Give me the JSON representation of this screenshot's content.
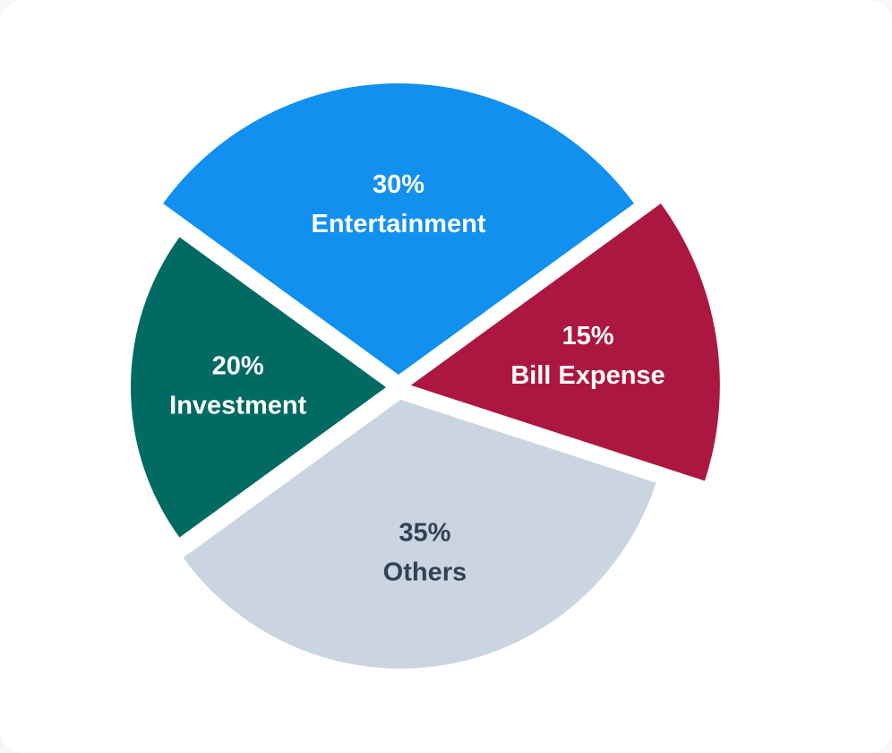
{
  "chart_data": {
    "type": "pie",
    "categories": [
      "Entertainment",
      "Bill Expense",
      "Others",
      "Investment"
    ],
    "values": [
      30,
      15,
      35,
      20
    ],
    "value_labels": [
      "30%",
      "15%",
      "35%",
      "20%"
    ],
    "colors": [
      "#1190f0",
      "#ab1740",
      "#cbd5e1",
      "#006a63"
    ]
  }
}
